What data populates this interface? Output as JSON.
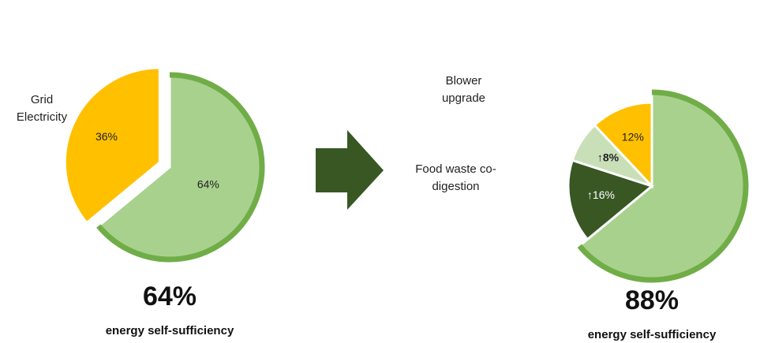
{
  "chart_data": [
    {
      "type": "pie",
      "categories": [
        null,
        "Grid Electricity"
      ],
      "values": [
        64,
        36
      ],
      "value_labels": [
        "64%",
        "36%"
      ],
      "colors": [
        "#a9d18e",
        "#ffc000"
      ],
      "headline": "64%",
      "subtitle": "energy self-sufficiency"
    },
    {
      "type": "pie",
      "categories": [
        null,
        "Food waste co-digestion",
        "Blower upgrade",
        null
      ],
      "values": [
        64,
        16,
        8,
        12
      ],
      "value_labels": [
        null,
        "↑16%",
        "↑8%",
        "12%"
      ],
      "colors": [
        "#a9d18e",
        "#385723",
        "#c9dfb8",
        "#ffc000"
      ],
      "headline": "88%",
      "subtitle": "energy self-sufficiency"
    }
  ]
}
